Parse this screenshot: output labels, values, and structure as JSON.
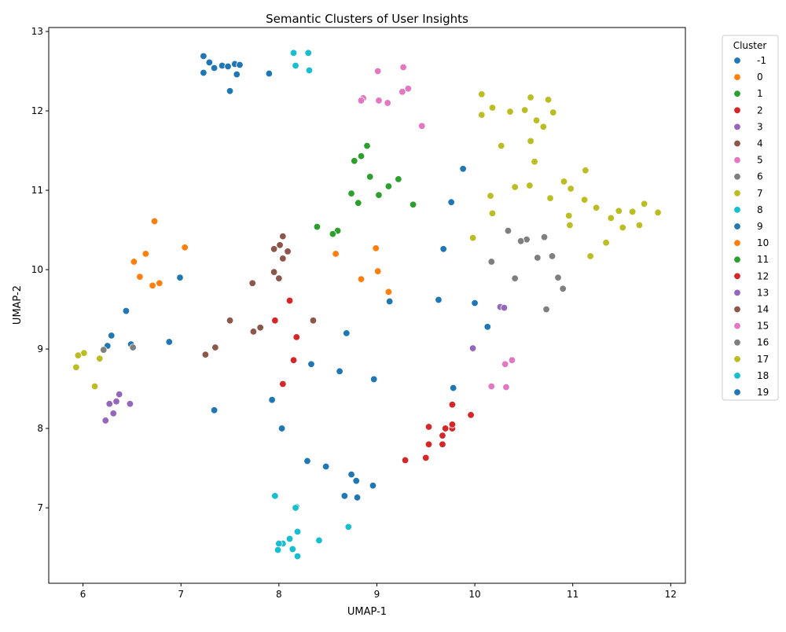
{
  "chart_data": {
    "type": "scatter",
    "title": "Semantic Clusters of User Insights",
    "xlabel": "UMAP-1",
    "ylabel": "UMAP-2",
    "xlim": [
      5.65,
      12.15
    ],
    "ylim": [
      6.05,
      13.05
    ],
    "xticks": [
      6,
      7,
      8,
      9,
      10,
      11,
      12
    ],
    "yticks": [
      7,
      8,
      9,
      10,
      11,
      12,
      13
    ],
    "grid": false,
    "legend": {
      "title": "Cluster",
      "placement": "outside-right"
    },
    "series": [
      {
        "name": "-1",
        "color": "#1f77b4",
        "points": [
          [
            7.23,
            12.69
          ],
          [
            7.29,
            12.61
          ],
          [
            7.42,
            12.57
          ],
          [
            7.48,
            12.56
          ],
          [
            7.55,
            12.59
          ],
          [
            7.6,
            12.58
          ],
          [
            7.34,
            12.54
          ],
          [
            7.23,
            12.48
          ],
          [
            7.57,
            12.46
          ],
          [
            7.9,
            12.47
          ],
          [
            7.5,
            12.25
          ]
        ]
      },
      {
        "name": "0",
        "color": "#ff7f0e",
        "points": [
          [
            6.73,
            10.61
          ],
          [
            7.04,
            10.28
          ],
          [
            6.64,
            10.2
          ],
          [
            6.52,
            10.1
          ],
          [
            6.58,
            9.91
          ],
          [
            6.78,
            9.83
          ],
          [
            6.71,
            9.8
          ]
        ]
      },
      {
        "name": "1",
        "color": "#2ca02c",
        "points": [
          [
            8.9,
            11.56
          ],
          [
            8.84,
            11.43
          ],
          [
            8.77,
            11.37
          ],
          [
            8.93,
            11.17
          ],
          [
            9.22,
            11.14
          ],
          [
            9.12,
            11.05
          ],
          [
            8.74,
            10.96
          ],
          [
            9.02,
            10.94
          ],
          [
            8.81,
            10.84
          ],
          [
            9.37,
            10.82
          ]
        ]
      },
      {
        "name": "2",
        "color": "#d62728",
        "points": [
          [
            9.53,
            8.02
          ],
          [
            9.7,
            8.0
          ],
          [
            9.77,
            8.0
          ],
          [
            9.77,
            8.05
          ],
          [
            9.67,
            7.91
          ],
          [
            9.53,
            7.8
          ],
          [
            9.67,
            7.8
          ],
          [
            9.5,
            7.63
          ],
          [
            9.29,
            7.6
          ]
        ]
      },
      {
        "name": "3",
        "color": "#9467bd",
        "points": [
          [
            6.37,
            8.43
          ],
          [
            6.34,
            8.34
          ],
          [
            6.27,
            8.31
          ],
          [
            6.48,
            8.31
          ],
          [
            6.31,
            8.19
          ],
          [
            6.23,
            8.1
          ]
        ]
      },
      {
        "name": "4",
        "color": "#8c564b",
        "points": [
          [
            8.04,
            10.42
          ],
          [
            8.01,
            10.31
          ],
          [
            7.95,
            10.26
          ],
          [
            8.09,
            10.23
          ],
          [
            8.04,
            10.14
          ],
          [
            7.95,
            9.97
          ],
          [
            8.0,
            9.89
          ],
          [
            7.73,
            9.83
          ]
        ]
      },
      {
        "name": "5",
        "color": "#e377c2",
        "points": [
          [
            9.27,
            12.55
          ],
          [
            9.01,
            12.5
          ],
          [
            9.32,
            12.28
          ],
          [
            9.26,
            12.24
          ],
          [
            8.86,
            12.16
          ],
          [
            8.84,
            12.13
          ],
          [
            9.02,
            12.13
          ],
          [
            9.11,
            12.1
          ],
          [
            9.46,
            11.81
          ]
        ]
      },
      {
        "name": "6",
        "color": "#7f7f7f",
        "points": [
          [
            10.34,
            10.49
          ],
          [
            10.71,
            10.41
          ],
          [
            10.53,
            10.38
          ],
          [
            10.47,
            10.36
          ],
          [
            10.79,
            10.17
          ],
          [
            10.64,
            10.15
          ],
          [
            10.17,
            10.1
          ],
          [
            10.85,
            9.9
          ],
          [
            10.41,
            9.89
          ],
          [
            10.9,
            9.76
          ],
          [
            10.73,
            9.5
          ]
        ]
      },
      {
        "name": "7",
        "color": "#bcbd22",
        "points": [
          [
            10.07,
            12.21
          ],
          [
            10.57,
            12.17
          ],
          [
            10.75,
            12.14
          ],
          [
            10.18,
            12.04
          ],
          [
            10.51,
            12.01
          ],
          [
            10.36,
            11.99
          ],
          [
            10.8,
            11.98
          ],
          [
            10.07,
            11.95
          ],
          [
            10.63,
            11.88
          ],
          [
            10.7,
            11.8
          ],
          [
            10.57,
            11.62
          ],
          [
            10.27,
            11.56
          ],
          [
            10.61,
            11.36
          ],
          [
            11.13,
            11.25
          ],
          [
            10.91,
            11.11
          ],
          [
            10.56,
            11.06
          ],
          [
            10.41,
            11.04
          ],
          [
            10.98,
            11.02
          ],
          [
            10.16,
            10.93
          ],
          [
            10.77,
            10.9
          ],
          [
            11.12,
            10.88
          ],
          [
            11.73,
            10.83
          ],
          [
            11.24,
            10.78
          ],
          [
            11.47,
            10.74
          ],
          [
            11.61,
            10.73
          ],
          [
            11.87,
            10.72
          ],
          [
            10.18,
            10.71
          ],
          [
            10.96,
            10.68
          ],
          [
            11.39,
            10.65
          ],
          [
            10.97,
            10.56
          ],
          [
            11.68,
            10.56
          ],
          [
            11.51,
            10.53
          ],
          [
            9.98,
            10.4
          ],
          [
            11.34,
            10.34
          ],
          [
            11.18,
            10.17
          ]
        ]
      },
      {
        "name": "8",
        "color": "#17becf",
        "points": [
          [
            8.15,
            12.73
          ],
          [
            8.3,
            12.73
          ],
          [
            8.17,
            12.57
          ],
          [
            8.31,
            12.51
          ]
        ]
      },
      {
        "name": "9",
        "color": "#1f77b4",
        "points": [
          [
            9.88,
            11.27
          ],
          [
            9.76,
            10.85
          ],
          [
            9.68,
            10.26
          ],
          [
            6.99,
            9.9
          ],
          [
            9.63,
            9.62
          ],
          [
            9.13,
            9.6
          ],
          [
            10.0,
            9.58
          ],
          [
            6.44,
            9.48
          ],
          [
            10.13,
            9.28
          ],
          [
            8.69,
            9.2
          ],
          [
            6.29,
            9.17
          ],
          [
            6.88,
            9.09
          ],
          [
            6.49,
            9.06
          ],
          [
            6.25,
            9.04
          ],
          [
            8.33,
            8.81
          ],
          [
            8.62,
            8.72
          ],
          [
            8.97,
            8.62
          ],
          [
            9.78,
            8.51
          ],
          [
            7.93,
            8.36
          ],
          [
            7.34,
            8.23
          ],
          [
            8.03,
            8.0
          ],
          [
            8.29,
            7.59
          ],
          [
            8.48,
            7.52
          ],
          [
            8.74,
            7.42
          ],
          [
            8.79,
            7.34
          ],
          [
            8.96,
            7.28
          ],
          [
            8.67,
            7.15
          ],
          [
            8.8,
            7.13
          ]
        ]
      },
      {
        "name": "10",
        "color": "#ff7f0e",
        "points": [
          [
            8.99,
            10.27
          ],
          [
            8.58,
            10.2
          ],
          [
            9.01,
            9.98
          ],
          [
            8.84,
            9.88
          ],
          [
            9.12,
            9.72
          ]
        ]
      },
      {
        "name": "11",
        "color": "#2ca02c",
        "points": [
          [
            8.39,
            10.54
          ],
          [
            8.6,
            10.49
          ],
          [
            8.55,
            10.45
          ]
        ]
      },
      {
        "name": "12",
        "color": "#d62728",
        "points": [
          [
            8.11,
            9.61
          ],
          [
            7.96,
            9.36
          ],
          [
            8.18,
            9.15
          ],
          [
            8.15,
            8.86
          ],
          [
            8.04,
            8.56
          ],
          [
            9.77,
            8.3
          ],
          [
            9.96,
            8.17
          ]
        ]
      },
      {
        "name": "13",
        "color": "#9467bd",
        "points": [
          [
            10.26,
            9.53
          ],
          [
            10.3,
            9.52
          ],
          [
            9.98,
            9.01
          ]
        ]
      },
      {
        "name": "14",
        "color": "#8c564b",
        "points": [
          [
            7.5,
            9.36
          ],
          [
            8.35,
            9.36
          ],
          [
            7.81,
            9.27
          ],
          [
            7.74,
            9.22
          ],
          [
            7.35,
            9.02
          ],
          [
            7.25,
            8.93
          ]
        ]
      },
      {
        "name": "15",
        "color": "#e377c2",
        "points": [
          [
            10.38,
            8.86
          ],
          [
            10.31,
            8.81
          ],
          [
            10.17,
            8.53
          ],
          [
            10.32,
            8.52
          ]
        ]
      },
      {
        "name": "16",
        "color": "#7f7f7f",
        "points": [
          [
            6.51,
            9.02
          ],
          [
            6.21,
            8.99
          ]
        ]
      },
      {
        "name": "17",
        "color": "#bcbd22",
        "points": [
          [
            6.01,
            8.95
          ],
          [
            5.95,
            8.92
          ],
          [
            6.17,
            8.88
          ],
          [
            5.93,
            8.77
          ],
          [
            6.12,
            8.53
          ]
        ]
      },
      {
        "name": "18",
        "color": "#17becf",
        "points": [
          [
            7.96,
            7.15
          ],
          [
            8.18,
            7.01
          ],
          [
            8.17,
            7.0
          ],
          [
            8.71,
            6.76
          ],
          [
            8.19,
            6.7
          ],
          [
            8.11,
            6.61
          ],
          [
            8.41,
            6.59
          ],
          [
            8.04,
            6.55
          ],
          [
            8.0,
            6.55
          ],
          [
            7.99,
            6.47
          ],
          [
            8.14,
            6.48
          ],
          [
            8.19,
            6.39
          ]
        ]
      },
      {
        "name": "19",
        "color": "#1f77b4",
        "points": []
      }
    ]
  }
}
